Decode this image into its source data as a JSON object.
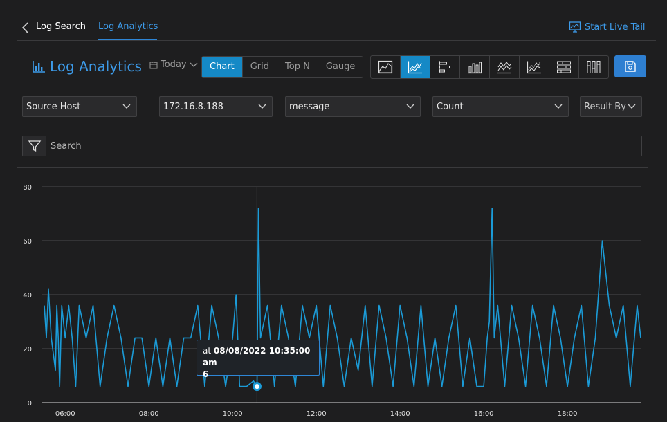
{
  "nav": {
    "back_icon": "chevron-left-icon",
    "breadcrumb_parent": "Log Search",
    "breadcrumb_current": "Log Analytics",
    "live_tail_label": "Start Live Tail",
    "live_tail_icon": "live-monitor-icon"
  },
  "header": {
    "title": "Log Analytics",
    "title_icon": "bar-chart-icon",
    "date_range": "Today",
    "view_tabs": [
      "Chart",
      "Grid",
      "Top N",
      "Gauge"
    ],
    "active_view": "Chart",
    "chart_types": [
      "area-chart-icon",
      "line-chart-icon",
      "horizontal-bar-icon",
      "column-chart-icon",
      "stacked-area-icon",
      "multi-line-icon",
      "stacked-bar-icon",
      "stacked-column-icon"
    ],
    "active_chart_type": "line-chart-icon",
    "save_icon": "save-icon"
  },
  "filters": {
    "group_field": "Source Host",
    "group_value": "172.16.8.188",
    "field": "message",
    "aggregation": "Count",
    "result_by": "Result By"
  },
  "search": {
    "placeholder": "Search",
    "icon": "filter-icon"
  },
  "colors": {
    "accent": "#3d9be9",
    "active": "#1589c6",
    "series": "#1b9bd7",
    "background": "#1e1e1f"
  },
  "tooltip": {
    "prefix": "at",
    "timestamp": "08/08/2022 10:35:00 am",
    "value": "6"
  },
  "chart_data": {
    "type": "line",
    "title": "",
    "xlabel": "",
    "ylabel": "",
    "x_range_hours": [
      5.5,
      19.8
    ],
    "ylim": [
      0,
      80
    ],
    "y_ticks": [
      0,
      20,
      40,
      60,
      80
    ],
    "x_ticks": [
      "06:00",
      "08:00",
      "10:00",
      "12:00",
      "14:00",
      "16:00",
      "18:00"
    ],
    "grid": true,
    "legend": "none",
    "hover_x_hours": 10.583,
    "hover_value": 6,
    "series": [
      {
        "approx_points_hhmm_value": [
          [
            "05:30",
            36
          ],
          [
            "05:33",
            24
          ],
          [
            "05:36",
            42
          ],
          [
            "05:40",
            24
          ],
          [
            "05:46",
            12
          ],
          [
            "05:48",
            36
          ],
          [
            "05:50",
            24
          ],
          [
            "05:52",
            6
          ],
          [
            "05:55",
            36
          ],
          [
            "06:00",
            24
          ],
          [
            "06:05",
            36
          ],
          [
            "06:10",
            24
          ],
          [
            "06:15",
            6
          ],
          [
            "06:20",
            36
          ],
          [
            "06:30",
            24
          ],
          [
            "06:40",
            36
          ],
          [
            "06:50",
            6
          ],
          [
            "07:00",
            24
          ],
          [
            "07:10",
            36
          ],
          [
            "07:20",
            24
          ],
          [
            "07:30",
            6
          ],
          [
            "07:40",
            24
          ],
          [
            "07:50",
            24
          ],
          [
            "08:00",
            6
          ],
          [
            "08:10",
            24
          ],
          [
            "08:20",
            6
          ],
          [
            "08:30",
            24
          ],
          [
            "08:40",
            6
          ],
          [
            "08:50",
            24
          ],
          [
            "09:00",
            24
          ],
          [
            "09:10",
            36
          ],
          [
            "09:20",
            6
          ],
          [
            "09:30",
            36
          ],
          [
            "09:40",
            24
          ],
          [
            "09:50",
            6
          ],
          [
            "10:00",
            24
          ],
          [
            "10:05",
            40
          ],
          [
            "10:10",
            6
          ],
          [
            "10:20",
            6
          ],
          [
            "10:30",
            8
          ],
          [
            "10:35",
            6
          ],
          [
            "10:37",
            72
          ],
          [
            "10:40",
            24
          ],
          [
            "10:50",
            36
          ],
          [
            "11:00",
            6
          ],
          [
            "11:10",
            36
          ],
          [
            "11:20",
            24
          ],
          [
            "11:30",
            6
          ],
          [
            "11:40",
            36
          ],
          [
            "11:50",
            24
          ],
          [
            "12:00",
            36
          ],
          [
            "12:10",
            6
          ],
          [
            "12:20",
            36
          ],
          [
            "12:30",
            24
          ],
          [
            "12:40",
            6
          ],
          [
            "12:50",
            24
          ],
          [
            "13:00",
            12
          ],
          [
            "13:10",
            36
          ],
          [
            "13:20",
            6
          ],
          [
            "13:30",
            36
          ],
          [
            "13:40",
            24
          ],
          [
            "13:50",
            6
          ],
          [
            "14:00",
            36
          ],
          [
            "14:10",
            24
          ],
          [
            "14:20",
            6
          ],
          [
            "14:30",
            36
          ],
          [
            "14:40",
            6
          ],
          [
            "14:50",
            24
          ],
          [
            "15:00",
            6
          ],
          [
            "15:10",
            24
          ],
          [
            "15:20",
            36
          ],
          [
            "15:30",
            6
          ],
          [
            "15:40",
            24
          ],
          [
            "15:50",
            6
          ],
          [
            "16:00",
            6
          ],
          [
            "16:05",
            24
          ],
          [
            "16:08",
            30
          ],
          [
            "16:12",
            72
          ],
          [
            "16:15",
            24
          ],
          [
            "16:20",
            36
          ],
          [
            "16:30",
            6
          ],
          [
            "16:40",
            36
          ],
          [
            "16:50",
            24
          ],
          [
            "17:00",
            6
          ],
          [
            "17:10",
            36
          ],
          [
            "17:20",
            24
          ],
          [
            "17:30",
            6
          ],
          [
            "17:40",
            36
          ],
          [
            "17:50",
            24
          ],
          [
            "18:00",
            6
          ],
          [
            "18:10",
            24
          ],
          [
            "18:20",
            36
          ],
          [
            "18:30",
            6
          ],
          [
            "18:40",
            24
          ],
          [
            "18:50",
            60
          ],
          [
            "19:00",
            36
          ],
          [
            "19:10",
            24
          ],
          [
            "19:20",
            36
          ],
          [
            "19:30",
            6
          ],
          [
            "19:40",
            36
          ],
          [
            "19:45",
            24
          ]
        ]
      }
    ]
  }
}
